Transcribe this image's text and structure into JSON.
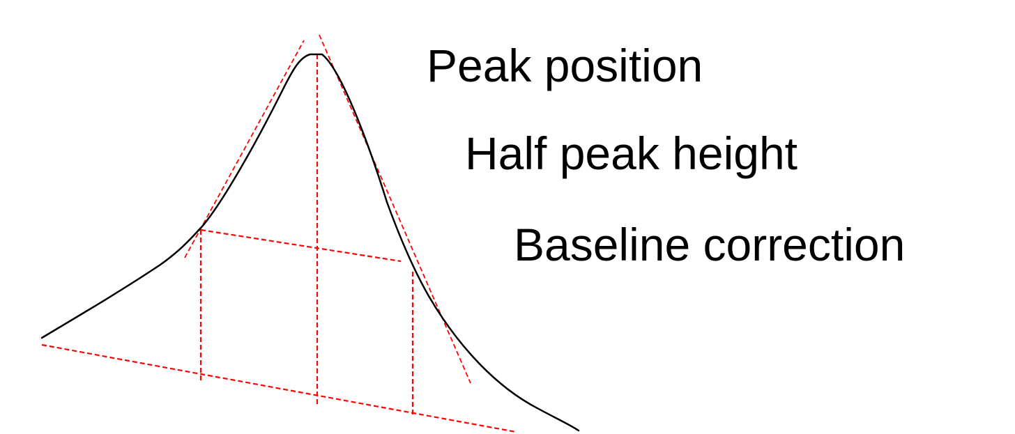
{
  "labels": {
    "peak_position": "Peak position",
    "half_peak_height": "Half peak height",
    "baseline_correction": "Baseline correction"
  },
  "colors": {
    "curve": "#000000",
    "construction_lines": "#ff0000",
    "background": "#ffffff"
  }
}
